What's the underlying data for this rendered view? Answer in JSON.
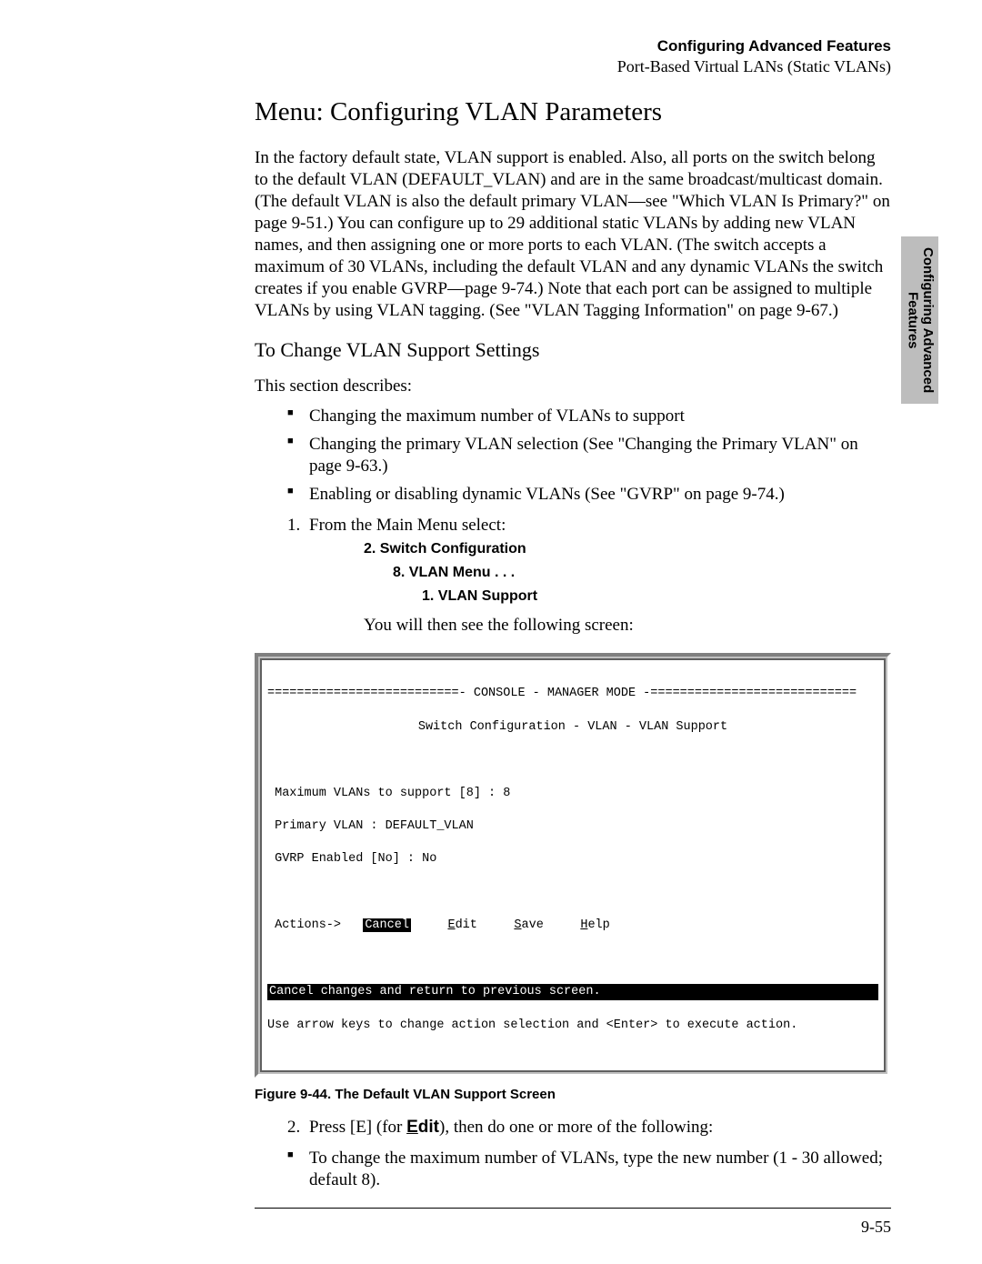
{
  "header": {
    "title": "Configuring Advanced Features",
    "subtitle": "Port-Based Virtual LANs (Static VLANs)"
  },
  "sidetab": {
    "line1": "Configuring Advanced",
    "line2": "Features"
  },
  "section": {
    "title": "Menu: Configuring VLAN Parameters",
    "intro": "In the factory default state, VLAN support is enabled. Also, all ports on the switch belong to the default VLAN (DEFAULT_VLAN) and are in the same broadcast/multicast domain.  (The default VLAN is also the default primary VLAN—see \"Which VLAN Is Primary?\" on page 9-51.) You can configure up to 29 additional static VLANs by adding new VLAN names, and then assigning one or more ports to each VLAN. (The switch accepts a maximum of 30 VLANs, including the default VLAN and any dynamic VLANs the switch creates if you enable GVRP—page 9-74.) Note that each port can be assigned to multiple VLANs by using VLAN tagging. (See \"VLAN Tagging Information\" on page 9-67.)"
  },
  "subsection": {
    "title": "To Change VLAN Support Settings",
    "lead": "This section describes:",
    "bullets": [
      "Changing the maximum number of VLANs to support",
      "Changing the primary VLAN selection (See \"Changing the Primary VLAN\" on page 9-63.)",
      "Enabling or disabling dynamic VLANs (See \"GVRP\" on page 9-74.)"
    ]
  },
  "step1": {
    "num": "1.",
    "text": "From the Main Menu select:",
    "menu": {
      "l1": "2. Switch Configuration",
      "l2": "8. VLAN Menu . . .",
      "l3": "1. VLAN Support"
    },
    "followup": "You will then see the following screen:"
  },
  "terminal": {
    "rule": "==========================- CONSOLE - MANAGER MODE -============================",
    "crumb": "Switch Configuration - VLAN - VLAN Support",
    "lines": [
      " Maximum VLANs to support [8] : 8",
      " Primary VLAN : DEFAULT_VLAN",
      " GVRP Enabled [No] : No"
    ],
    "actions_prefix": " Actions->   ",
    "actions": {
      "cancel": "Cancel",
      "edit_u": "E",
      "edit_rest": "dit",
      "save_u": "S",
      "save_rest": "ave",
      "help_u": "H",
      "help_rest": "elp"
    },
    "status": "Cancel changes and return to previous screen.                                  ",
    "hint": "Use arrow keys to change action selection and <Enter> to execute action."
  },
  "figure_caption": "Figure 9-44.  The Default VLAN Support Screen",
  "step2": {
    "num": "2.",
    "prefix": "Press [E] (for ",
    "edit_u": "E",
    "edit_rest": "dit",
    "suffix": "), then do one or more of the following:",
    "bullet": "To change the maximum number of VLANs, type the new number (1 - 30 allowed; default 8)."
  },
  "page_number": "9-55",
  "colors": {
    "background": "#ffffff",
    "text": "#000000",
    "sidetab_bg": "#bdbdbd",
    "terminal_border": "#808080",
    "inverse_bg": "#000000",
    "inverse_fg": "#ffffff"
  },
  "typography": {
    "body_font": "Times New Roman",
    "sans_font": "Arial",
    "mono_font": "Courier New",
    "h1_size_pt": 22,
    "h2_size_pt": 17,
    "body_size_pt": 14,
    "terminal_size_pt": 10
  }
}
